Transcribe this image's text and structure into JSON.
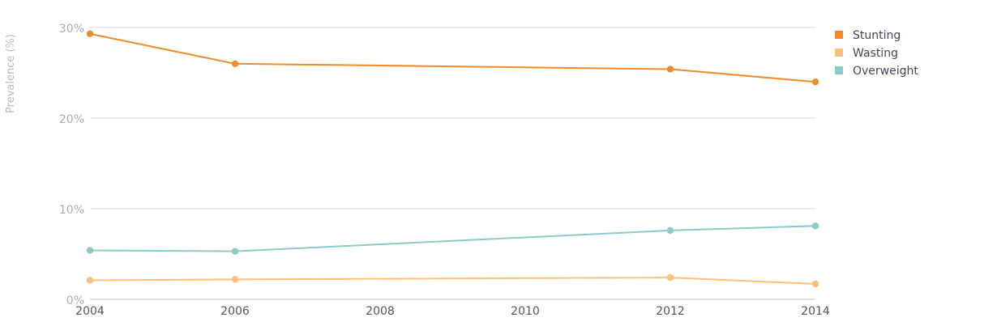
{
  "chart_data": {
    "type": "line",
    "ylabel": "Prevalence (%)",
    "xlabel": "",
    "x": [
      2004,
      2006,
      2012,
      2014
    ],
    "x_ticks": [
      "2004",
      "2006",
      "2008",
      "2010",
      "2012",
      "2014"
    ],
    "y_ticks": [
      "0%",
      "10%",
      "20%",
      "30%"
    ],
    "xlim": [
      2004,
      2014
    ],
    "ylim": [
      0,
      30
    ],
    "grid": true,
    "legend_position": "top-right",
    "series": [
      {
        "name": "Stunting",
        "color": "#f28a2a",
        "values": [
          29.3,
          26.0,
          25.4,
          24.0
        ]
      },
      {
        "name": "Wasting",
        "color": "#fcc07a",
        "values": [
          2.1,
          2.2,
          2.4,
          1.7
        ]
      },
      {
        "name": "Overweight",
        "color": "#8ccac8",
        "values": [
          5.4,
          5.3,
          7.6,
          8.1
        ]
      }
    ]
  }
}
